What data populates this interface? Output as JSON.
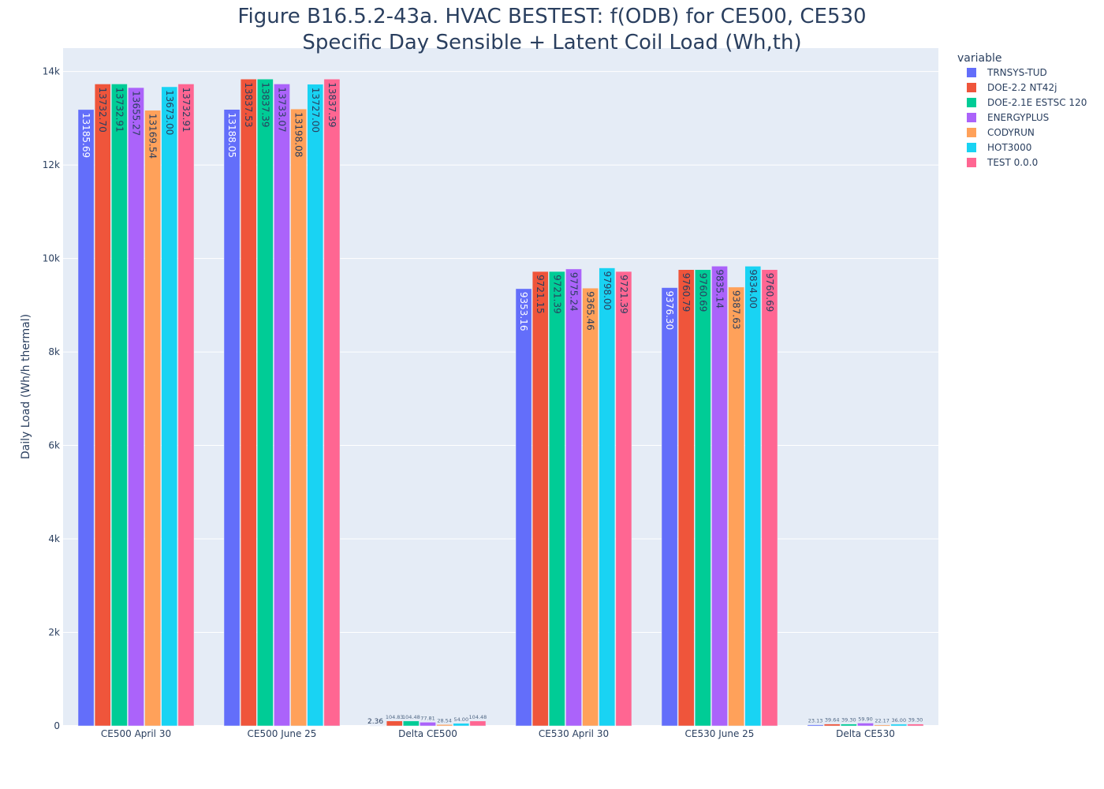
{
  "chart_data": {
    "type": "bar",
    "title": "Figure B16.5.2-43a. HVAC BESTEST: f(ODB) for CE500, CE530",
    "subtitle": "Specific Day Sensible + Latent Coil Load (Wh,th)",
    "xlabel": "",
    "ylabel": "Daily Load (Wh/h thermal)",
    "ylim": [
      0,
      14500
    ],
    "yticks": [
      0,
      2000,
      4000,
      6000,
      8000,
      10000,
      12000,
      14000
    ],
    "ytick_labels": [
      "0",
      "2k",
      "4k",
      "6k",
      "8k",
      "10k",
      "12k",
      "14k"
    ],
    "grid": true,
    "legend_title": "variable",
    "legend_position": "top-right",
    "categories": [
      "CE500 April 30",
      "CE500 June 25",
      "Delta CE500",
      "CE530 April 30",
      "CE530 June 25",
      "Delta CE530"
    ],
    "series": [
      {
        "name": "TRNSYS-TUD",
        "color": "#636efa",
        "values": [
          13185.69,
          13188.05,
          2.36,
          9353.16,
          9376.3,
          23.13
        ],
        "labels": [
          "13185.69",
          "13188.05",
          "2.36",
          "9353.16",
          "9376.30",
          "23.13"
        ]
      },
      {
        "name": "DOE-2.2 NT42j",
        "color": "#ef553b",
        "values": [
          13732.7,
          13837.53,
          104.83,
          9721.15,
          9760.79,
          39.64
        ],
        "labels": [
          "13732.70",
          "13837.53",
          "104.83",
          "9721.15",
          "9760.79",
          "39.64"
        ]
      },
      {
        "name": "DOE-2.1E ESTSC 120",
        "color": "#00cc96",
        "values": [
          13732.91,
          13837.39,
          104.48,
          9721.39,
          9760.69,
          39.3
        ],
        "labels": [
          "13732.91",
          "13837.39",
          "104.48",
          "9721.39",
          "9760.69",
          "39.30"
        ]
      },
      {
        "name": "ENERGYPLUS",
        "color": "#ab63fa",
        "values": [
          13655.27,
          13733.07,
          77.81,
          9775.24,
          9835.14,
          59.9
        ],
        "labels": [
          "13655.27",
          "13733.07",
          "77.81",
          "9775.24",
          "9835.14",
          "59.90"
        ]
      },
      {
        "name": "CODYRUN",
        "color": "#ffa15a",
        "values": [
          13169.54,
          13198.08,
          28.54,
          9365.46,
          9387.63,
          22.17
        ],
        "labels": [
          "13169.54",
          "13198.08",
          "28.54",
          "9365.46",
          "9387.63",
          "22.17"
        ]
      },
      {
        "name": "HOT3000",
        "color": "#19d3f3",
        "values": [
          13673.0,
          13727.0,
          54.0,
          9798.0,
          9834.0,
          36.0
        ],
        "labels": [
          "13673.00",
          "13727.00",
          "54.00",
          "9798.00",
          "9834.00",
          "36.00"
        ]
      },
      {
        "name": "TEST 0.0.0",
        "color": "#ff6692",
        "values": [
          13732.91,
          13837.39,
          104.48,
          9721.39,
          9760.69,
          39.3
        ],
        "labels": [
          "13732.91",
          "13837.39",
          "104.48",
          "9721.39",
          "9760.69",
          "39.30"
        ]
      }
    ]
  }
}
